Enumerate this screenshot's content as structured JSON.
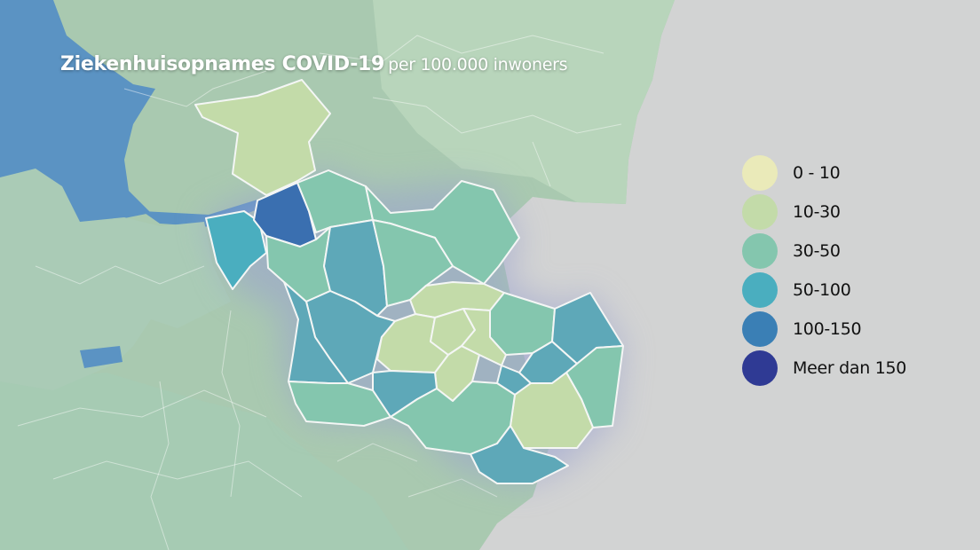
{
  "title": {
    "main": "Ziekenhuisopnames COVID-19",
    "sub": "per 100.000 inwoners"
  },
  "legend": [
    {
      "label": "0 - 10",
      "color": "#eaeab9"
    },
    {
      "label": "10-30",
      "color": "#c3dba9"
    },
    {
      "label": "30-50",
      "color": "#84c6ae"
    },
    {
      "label": "50-100",
      "color": "#4aaebf"
    },
    {
      "label": "100-150",
      "color": "#3a7fb5"
    },
    {
      "label": "Meer dan 150",
      "color": "#2f3a94"
    }
  ],
  "colors": {
    "background_gray": "#d2d3d3",
    "surrounding_land": "#a9c9b0",
    "water": "#5b93c3",
    "glow": "#9aa0d0"
  }
}
